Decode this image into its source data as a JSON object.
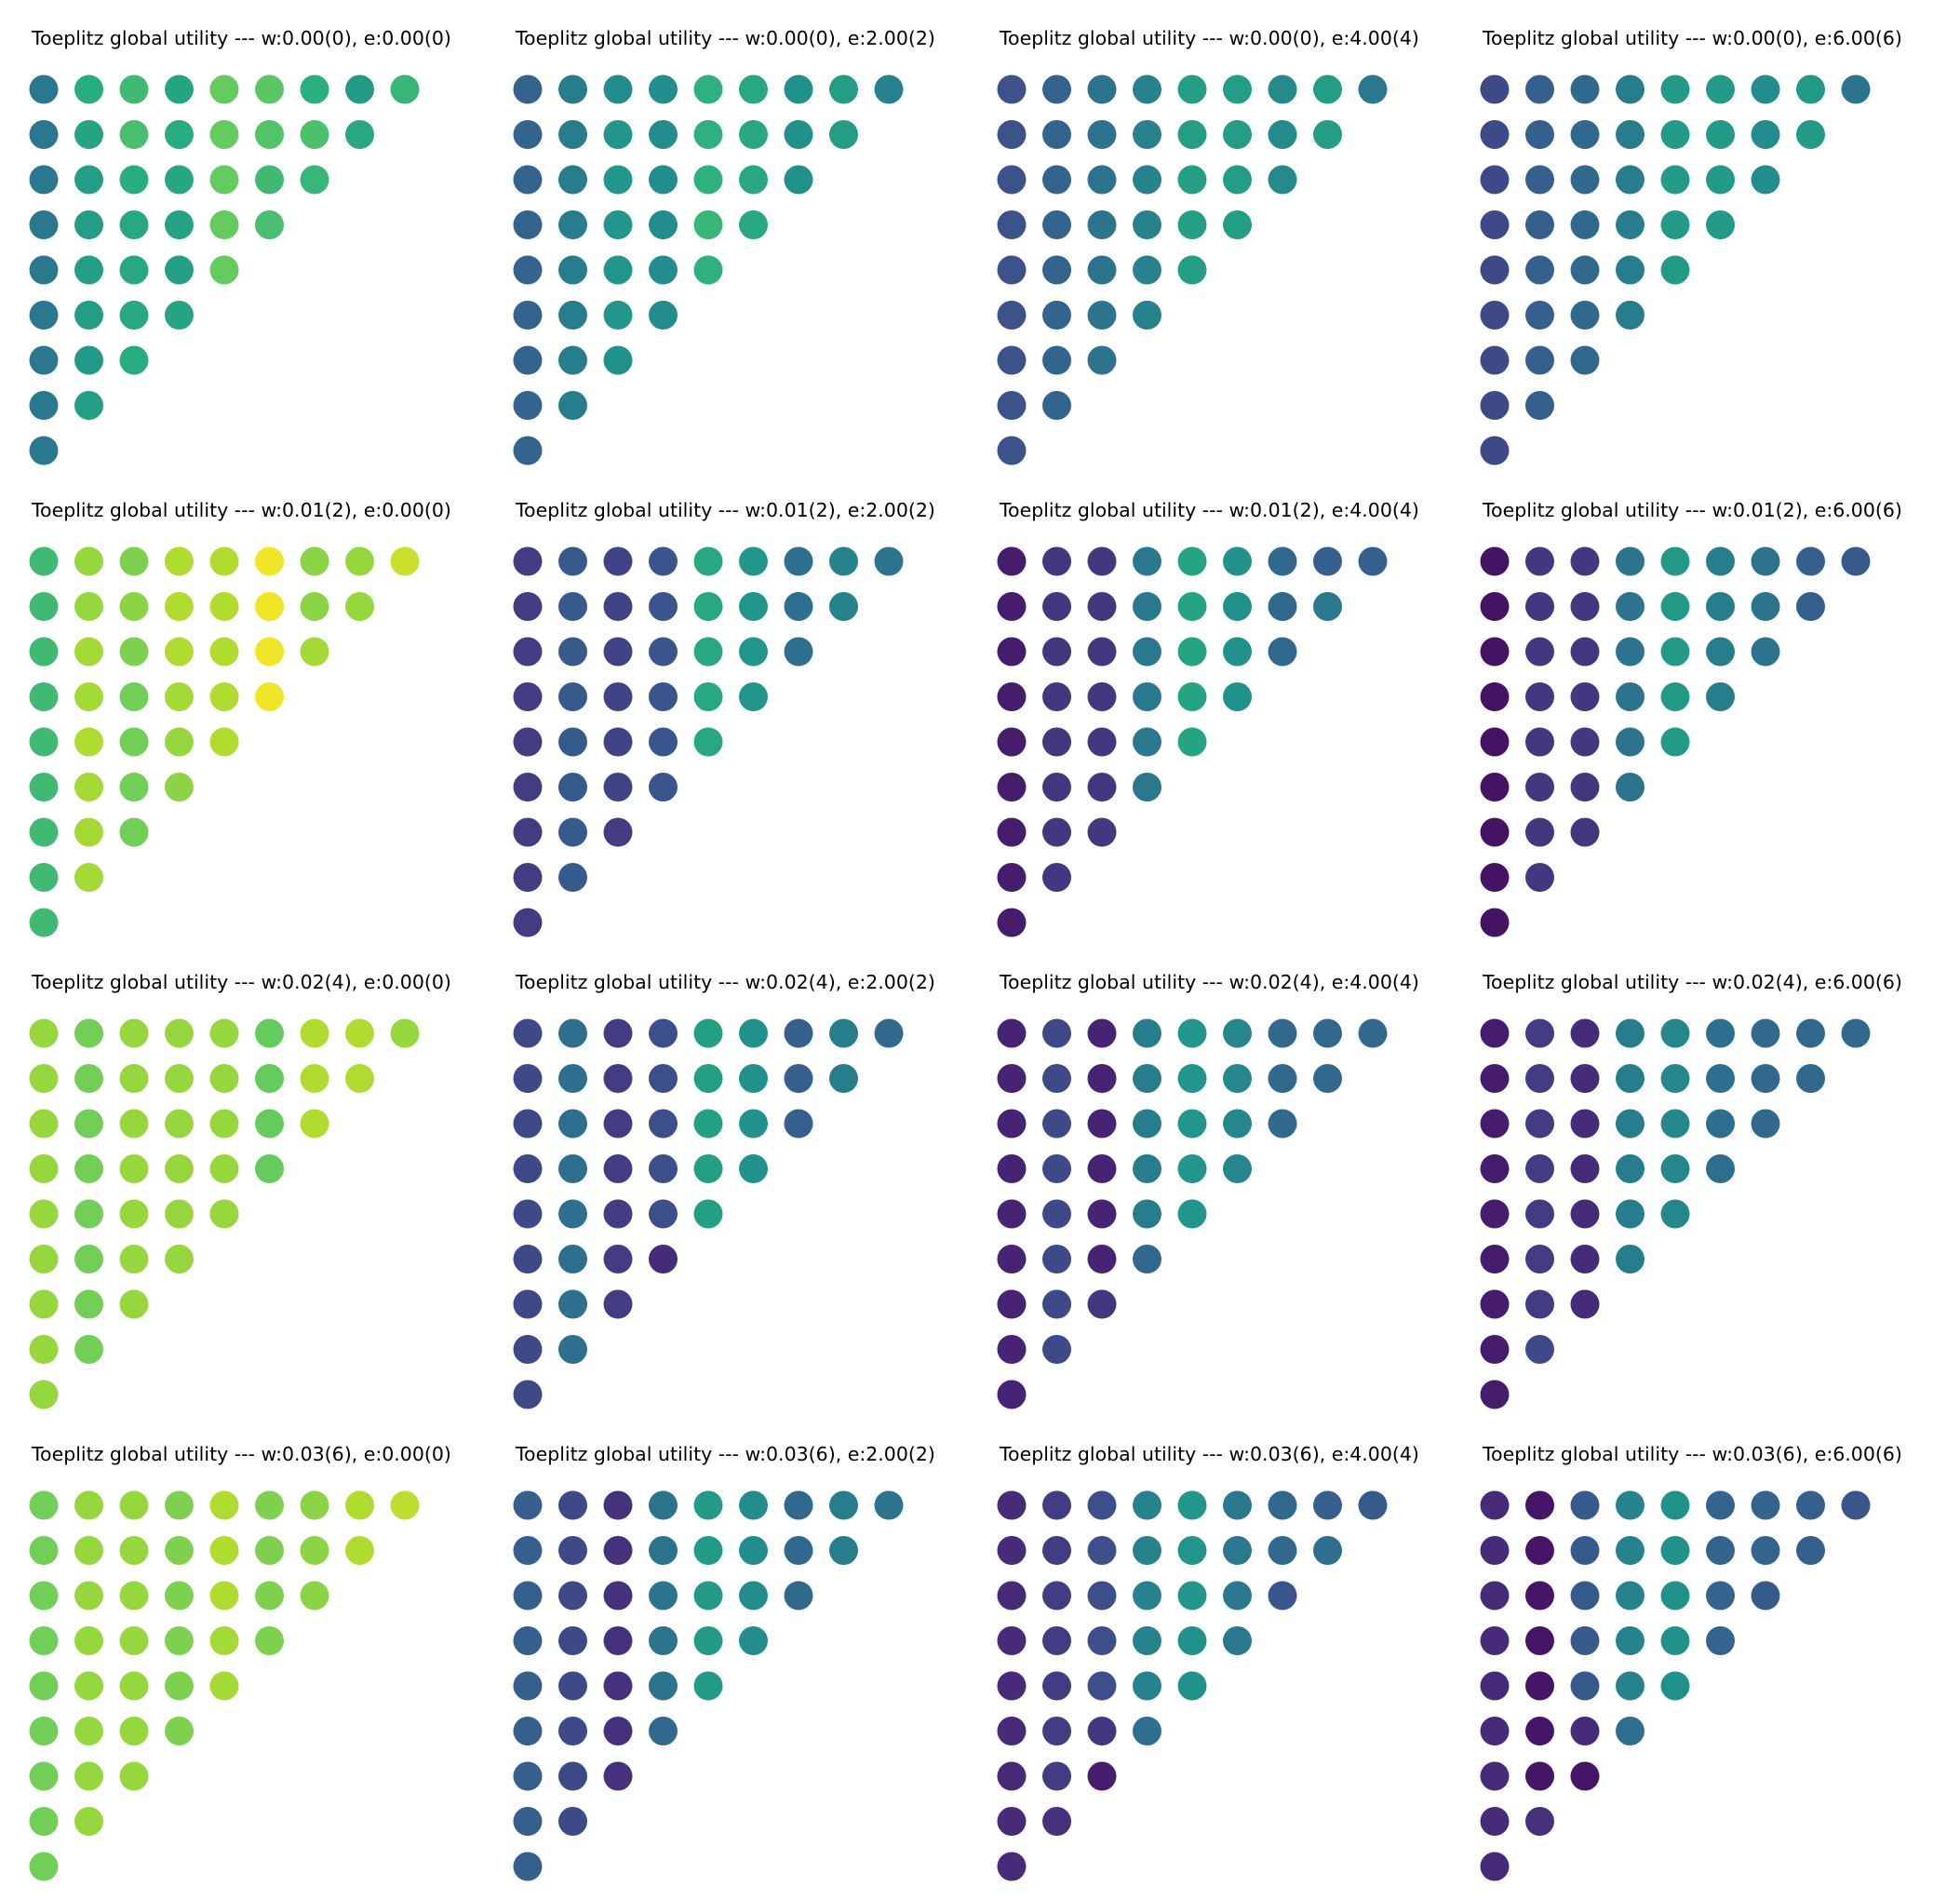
{
  "chart_data": {
    "type": "scatter",
    "grid": "off",
    "colormap": "viridis",
    "encoding_note": "triangular dot matrix; row r (top=0) has 9-r dots; each dot colored by a viridis value 0..1",
    "panels": [
      {
        "title": "Toeplitz global utility --- w:0.00(0), e:0.00(0)",
        "rows": [
          [
            0.4,
            0.62,
            0.68,
            0.58,
            0.76,
            0.74,
            0.63,
            0.54,
            0.66
          ],
          [
            0.4,
            0.58,
            0.7,
            0.61,
            0.76,
            0.72,
            0.71,
            0.6
          ],
          [
            0.4,
            0.56,
            0.62,
            0.59,
            0.76,
            0.68,
            0.66
          ],
          [
            0.4,
            0.55,
            0.6,
            0.57,
            0.76,
            0.7
          ],
          [
            0.4,
            0.56,
            0.6,
            0.56,
            0.76
          ],
          [
            0.4,
            0.55,
            0.6,
            0.58
          ],
          [
            0.4,
            0.54,
            0.61
          ],
          [
            0.4,
            0.56
          ],
          [
            0.4
          ]
        ]
      },
      {
        "title": "Toeplitz global utility --- w:0.00(0), e:2.00(2)",
        "rows": [
          [
            0.32,
            0.42,
            0.48,
            0.49,
            0.64,
            0.6,
            0.5,
            0.55,
            0.44
          ],
          [
            0.32,
            0.42,
            0.52,
            0.48,
            0.64,
            0.6,
            0.5,
            0.55
          ],
          [
            0.32,
            0.42,
            0.52,
            0.48,
            0.64,
            0.6,
            0.5
          ],
          [
            0.32,
            0.42,
            0.52,
            0.48,
            0.66,
            0.6
          ],
          [
            0.32,
            0.42,
            0.52,
            0.48,
            0.64
          ],
          [
            0.32,
            0.42,
            0.52,
            0.48
          ],
          [
            0.32,
            0.42,
            0.5
          ],
          [
            0.32,
            0.42
          ],
          [
            0.32
          ]
        ]
      },
      {
        "title": "Toeplitz global utility --- w:0.00(0), e:4.00(4)",
        "rows": [
          [
            0.25,
            0.32,
            0.38,
            0.44,
            0.56,
            0.55,
            0.47,
            0.55,
            0.4
          ],
          [
            0.25,
            0.32,
            0.38,
            0.44,
            0.56,
            0.55,
            0.47,
            0.55
          ],
          [
            0.25,
            0.32,
            0.38,
            0.44,
            0.56,
            0.55,
            0.47
          ],
          [
            0.25,
            0.32,
            0.38,
            0.44,
            0.56,
            0.55
          ],
          [
            0.25,
            0.32,
            0.38,
            0.44,
            0.56
          ],
          [
            0.25,
            0.32,
            0.38,
            0.44
          ],
          [
            0.25,
            0.32,
            0.38
          ],
          [
            0.25,
            0.32
          ],
          [
            0.25
          ]
        ]
      },
      {
        "title": "Toeplitz global utility --- w:0.00(0), e:6.00(6)",
        "rows": [
          [
            0.22,
            0.3,
            0.34,
            0.42,
            0.54,
            0.54,
            0.48,
            0.54,
            0.38
          ],
          [
            0.22,
            0.3,
            0.34,
            0.42,
            0.54,
            0.54,
            0.48,
            0.54
          ],
          [
            0.22,
            0.3,
            0.34,
            0.42,
            0.54,
            0.54,
            0.48
          ],
          [
            0.22,
            0.3,
            0.34,
            0.42,
            0.54,
            0.54
          ],
          [
            0.22,
            0.3,
            0.34,
            0.42,
            0.54
          ],
          [
            0.22,
            0.3,
            0.34,
            0.42
          ],
          [
            0.22,
            0.3,
            0.34
          ],
          [
            0.22,
            0.3
          ],
          [
            0.22
          ]
        ]
      },
      {
        "title": "Toeplitz global utility --- w:0.01(2), e:0.00(0)",
        "rows": [
          [
            0.68,
            0.84,
            0.8,
            0.88,
            0.88,
            0.98,
            0.82,
            0.84,
            0.92
          ],
          [
            0.68,
            0.84,
            0.82,
            0.88,
            0.88,
            0.98,
            0.82,
            0.84
          ],
          [
            0.68,
            0.86,
            0.8,
            0.88,
            0.88,
            0.98,
            0.86
          ],
          [
            0.68,
            0.86,
            0.78,
            0.86,
            0.88,
            0.98
          ],
          [
            0.68,
            0.88,
            0.78,
            0.84,
            0.88
          ],
          [
            0.68,
            0.86,
            0.78,
            0.82
          ],
          [
            0.68,
            0.86,
            0.78
          ],
          [
            0.68,
            0.86
          ],
          [
            0.68
          ]
        ]
      },
      {
        "title": "Toeplitz global utility --- w:0.01(2), e:2.00(2)",
        "rows": [
          [
            0.18,
            0.28,
            0.2,
            0.26,
            0.6,
            0.52,
            0.36,
            0.44,
            0.38
          ],
          [
            0.18,
            0.28,
            0.2,
            0.26,
            0.6,
            0.52,
            0.36,
            0.44
          ],
          [
            0.18,
            0.28,
            0.2,
            0.26,
            0.6,
            0.52,
            0.36
          ],
          [
            0.18,
            0.28,
            0.2,
            0.26,
            0.6,
            0.52
          ],
          [
            0.18,
            0.28,
            0.2,
            0.26,
            0.6
          ],
          [
            0.18,
            0.28,
            0.2,
            0.26
          ],
          [
            0.18,
            0.28,
            0.18
          ],
          [
            0.18,
            0.28
          ],
          [
            0.18
          ]
        ]
      },
      {
        "title": "Toeplitz global utility --- w:0.01(2), e:4.00(4)",
        "rows": [
          [
            0.08,
            0.16,
            0.16,
            0.4,
            0.58,
            0.5,
            0.34,
            0.3,
            0.3
          ],
          [
            0.08,
            0.16,
            0.16,
            0.4,
            0.58,
            0.5,
            0.34,
            0.4
          ],
          [
            0.08,
            0.16,
            0.16,
            0.4,
            0.58,
            0.5,
            0.34
          ],
          [
            0.08,
            0.16,
            0.16,
            0.4,
            0.58,
            0.5
          ],
          [
            0.08,
            0.16,
            0.16,
            0.4,
            0.58
          ],
          [
            0.08,
            0.16,
            0.16,
            0.4
          ],
          [
            0.08,
            0.16,
            0.16
          ],
          [
            0.08,
            0.16
          ],
          [
            0.08
          ]
        ]
      },
      {
        "title": "Toeplitz global utility --- w:0.01(2), e:6.00(6)",
        "rows": [
          [
            0.05,
            0.16,
            0.16,
            0.38,
            0.54,
            0.42,
            0.38,
            0.3,
            0.28
          ],
          [
            0.05,
            0.16,
            0.16,
            0.38,
            0.54,
            0.42,
            0.38,
            0.3
          ],
          [
            0.05,
            0.16,
            0.16,
            0.38,
            0.54,
            0.42,
            0.38
          ],
          [
            0.05,
            0.16,
            0.16,
            0.38,
            0.54,
            0.42
          ],
          [
            0.05,
            0.16,
            0.16,
            0.38,
            0.54
          ],
          [
            0.05,
            0.16,
            0.16,
            0.38
          ],
          [
            0.05,
            0.16,
            0.16
          ],
          [
            0.05,
            0.16
          ],
          [
            0.05
          ]
        ]
      },
      {
        "title": "Toeplitz global utility --- w:0.02(4), e:0.00(0)",
        "rows": [
          [
            0.84,
            0.78,
            0.84,
            0.84,
            0.84,
            0.76,
            0.88,
            0.88,
            0.84
          ],
          [
            0.84,
            0.78,
            0.84,
            0.84,
            0.84,
            0.76,
            0.88,
            0.88
          ],
          [
            0.84,
            0.78,
            0.84,
            0.84,
            0.84,
            0.76,
            0.88
          ],
          [
            0.84,
            0.78,
            0.84,
            0.84,
            0.84,
            0.76
          ],
          [
            0.84,
            0.78,
            0.84,
            0.84,
            0.84
          ],
          [
            0.84,
            0.78,
            0.84,
            0.84
          ],
          [
            0.84,
            0.78,
            0.84
          ],
          [
            0.84,
            0.78
          ],
          [
            0.84
          ]
        ]
      },
      {
        "title": "Toeplitz global utility --- w:0.02(4), e:2.00(2)",
        "rows": [
          [
            0.22,
            0.36,
            0.18,
            0.24,
            0.56,
            0.5,
            0.3,
            0.42,
            0.34
          ],
          [
            0.22,
            0.36,
            0.18,
            0.24,
            0.56,
            0.5,
            0.3,
            0.42
          ],
          [
            0.22,
            0.36,
            0.18,
            0.24,
            0.56,
            0.5,
            0.3
          ],
          [
            0.22,
            0.36,
            0.18,
            0.24,
            0.56,
            0.5
          ],
          [
            0.22,
            0.36,
            0.18,
            0.24,
            0.56
          ],
          [
            0.22,
            0.36,
            0.18,
            0.12
          ],
          [
            0.22,
            0.36,
            0.18
          ],
          [
            0.22,
            0.36
          ],
          [
            0.22
          ]
        ]
      },
      {
        "title": "Toeplitz global utility --- w:0.02(4), e:4.00(4)",
        "rows": [
          [
            0.1,
            0.22,
            0.1,
            0.42,
            0.52,
            0.46,
            0.34,
            0.34,
            0.34
          ],
          [
            0.1,
            0.22,
            0.1,
            0.42,
            0.52,
            0.46,
            0.34,
            0.34
          ],
          [
            0.1,
            0.22,
            0.1,
            0.42,
            0.52,
            0.46,
            0.34
          ],
          [
            0.1,
            0.22,
            0.1,
            0.42,
            0.52,
            0.46
          ],
          [
            0.1,
            0.22,
            0.1,
            0.42,
            0.52
          ],
          [
            0.1,
            0.22,
            0.1,
            0.34
          ],
          [
            0.1,
            0.22,
            0.16
          ],
          [
            0.1,
            0.22
          ],
          [
            0.1
          ]
        ]
      },
      {
        "title": "Toeplitz global utility --- w:0.02(4), e:6.00(6)",
        "rows": [
          [
            0.08,
            0.18,
            0.12,
            0.42,
            0.46,
            0.36,
            0.34,
            0.34,
            0.34
          ],
          [
            0.08,
            0.18,
            0.12,
            0.42,
            0.46,
            0.36,
            0.34,
            0.34
          ],
          [
            0.08,
            0.18,
            0.12,
            0.42,
            0.46,
            0.36,
            0.34
          ],
          [
            0.08,
            0.18,
            0.12,
            0.42,
            0.46,
            0.36
          ],
          [
            0.08,
            0.18,
            0.12,
            0.42,
            0.46
          ],
          [
            0.08,
            0.18,
            0.12,
            0.42
          ],
          [
            0.08,
            0.18,
            0.12
          ],
          [
            0.08,
            0.22
          ],
          [
            0.08
          ]
        ]
      },
      {
        "title": "Toeplitz global utility --- w:0.03(6), e:0.00(0)",
        "rows": [
          [
            0.78,
            0.84,
            0.84,
            0.8,
            0.88,
            0.8,
            0.82,
            0.88,
            0.9
          ],
          [
            0.78,
            0.84,
            0.84,
            0.8,
            0.88,
            0.8,
            0.82,
            0.88
          ],
          [
            0.78,
            0.84,
            0.84,
            0.8,
            0.88,
            0.8,
            0.82
          ],
          [
            0.78,
            0.84,
            0.84,
            0.8,
            0.86,
            0.8
          ],
          [
            0.78,
            0.84,
            0.84,
            0.8,
            0.86
          ],
          [
            0.78,
            0.84,
            0.84,
            0.8
          ],
          [
            0.78,
            0.84,
            0.84
          ],
          [
            0.78,
            0.84
          ],
          [
            0.78
          ]
        ]
      },
      {
        "title": "Toeplitz global utility --- w:0.03(6), e:2.00(2)",
        "rows": [
          [
            0.3,
            0.22,
            0.14,
            0.38,
            0.54,
            0.48,
            0.34,
            0.42,
            0.38
          ],
          [
            0.3,
            0.22,
            0.14,
            0.38,
            0.54,
            0.48,
            0.34,
            0.42
          ],
          [
            0.3,
            0.22,
            0.14,
            0.38,
            0.54,
            0.48,
            0.34
          ],
          [
            0.3,
            0.22,
            0.14,
            0.38,
            0.54,
            0.48
          ],
          [
            0.3,
            0.22,
            0.14,
            0.38,
            0.54
          ],
          [
            0.3,
            0.22,
            0.14,
            0.34
          ],
          [
            0.3,
            0.22,
            0.14
          ],
          [
            0.3,
            0.22
          ],
          [
            0.3
          ]
        ]
      },
      {
        "title": "Toeplitz global utility --- w:0.03(6), e:4.00(4)",
        "rows": [
          [
            0.12,
            0.18,
            0.24,
            0.44,
            0.52,
            0.4,
            0.34,
            0.3,
            0.28
          ],
          [
            0.12,
            0.18,
            0.24,
            0.44,
            0.52,
            0.4,
            0.34,
            0.36
          ],
          [
            0.12,
            0.18,
            0.24,
            0.44,
            0.52,
            0.4,
            0.26
          ],
          [
            0.12,
            0.18,
            0.24,
            0.44,
            0.5,
            0.4
          ],
          [
            0.12,
            0.18,
            0.24,
            0.44,
            0.5
          ],
          [
            0.12,
            0.18,
            0.16,
            0.36
          ],
          [
            0.12,
            0.18,
            0.08
          ],
          [
            0.12,
            0.14
          ],
          [
            0.12
          ]
        ]
      },
      {
        "title": "Toeplitz global utility --- w:0.03(6), e:6.00(6)",
        "rows": [
          [
            0.12,
            0.06,
            0.28,
            0.44,
            0.5,
            0.32,
            0.32,
            0.3,
            0.26
          ],
          [
            0.12,
            0.06,
            0.28,
            0.44,
            0.5,
            0.32,
            0.32,
            0.3
          ],
          [
            0.12,
            0.06,
            0.28,
            0.44,
            0.5,
            0.32,
            0.28
          ],
          [
            0.12,
            0.06,
            0.28,
            0.44,
            0.5,
            0.32
          ],
          [
            0.12,
            0.06,
            0.28,
            0.44,
            0.5
          ],
          [
            0.12,
            0.06,
            0.12,
            0.36
          ],
          [
            0.12,
            0.06,
            0.06
          ],
          [
            0.12,
            0.14
          ],
          [
            0.12
          ]
        ]
      }
    ]
  }
}
